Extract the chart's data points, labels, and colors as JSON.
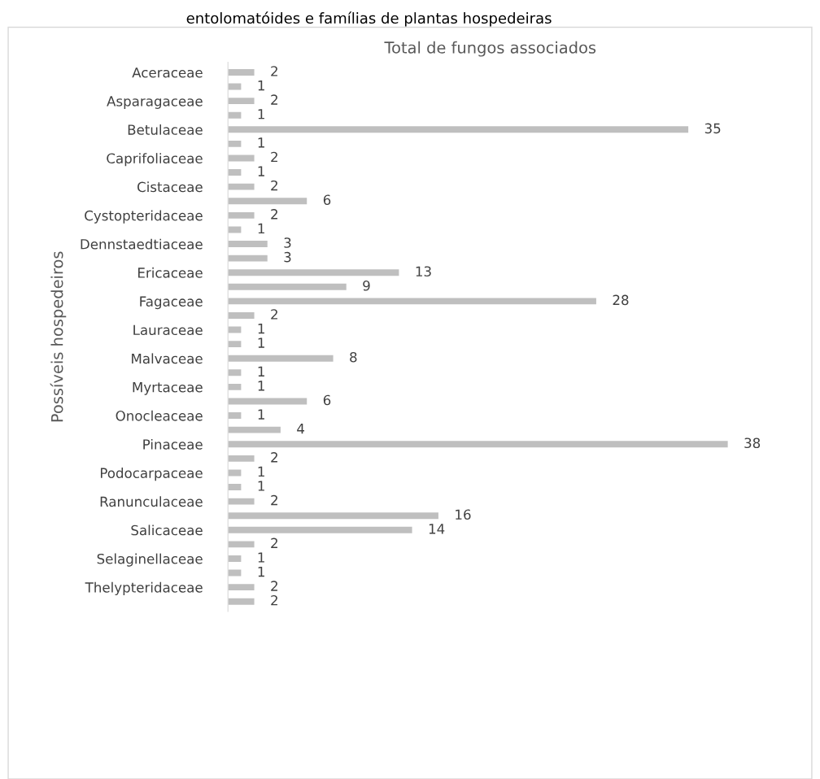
{
  "chart_data": {
    "type": "bar",
    "orientation": "horizontal",
    "title": "Total de fungos associados",
    "ylabel": "Possíveis hospedeiros",
    "annotations": [
      "entolomatóides e famílias de plantas hospedeiras"
    ],
    "categories": [
      "Aceraceae",
      null,
      "Asparagaceae",
      null,
      "Betulaceae",
      null,
      "Caprifoliaceae",
      null,
      "Cistaceae",
      null,
      "Cystopteridaceae",
      null,
      "Dennstaedtiaceae",
      null,
      "Ericaceae",
      null,
      "Fagaceae",
      null,
      "Lauraceae",
      null,
      "Malvaceae",
      null,
      "Myrtaceae",
      null,
      "Onocleaceae",
      null,
      "Pinaceae",
      null,
      "Podocarpaceae",
      null,
      "Ranunculaceae",
      null,
      "Salicaceae",
      null,
      "Selaginellaceae",
      null,
      "Thelypteridaceae",
      null
    ],
    "values": [
      2,
      1,
      2,
      1,
      35,
      1,
      2,
      1,
      2,
      6,
      2,
      1,
      3,
      3,
      13,
      9,
      28,
      2,
      1,
      1,
      8,
      1,
      1,
      6,
      1,
      4,
      38,
      2,
      1,
      1,
      2,
      16,
      14,
      2,
      1,
      1,
      2,
      2
    ],
    "color": "#bfbfbf",
    "data_labels": true,
    "tick_labels": "y",
    "grid": false,
    "legend": false
  }
}
